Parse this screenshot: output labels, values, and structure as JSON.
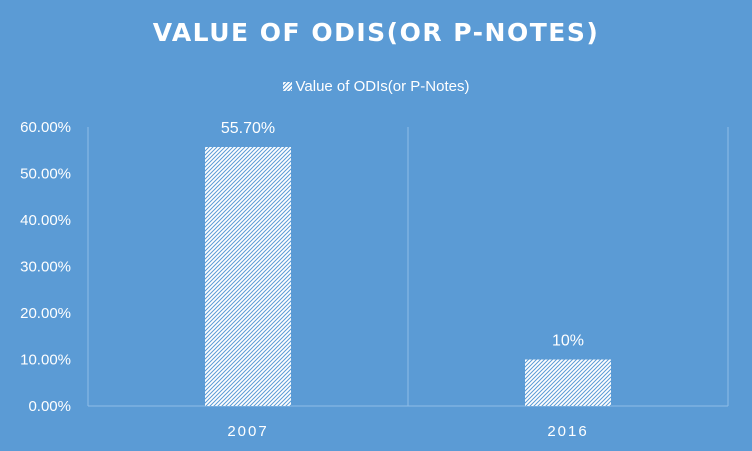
{
  "colors": {
    "background": "#5b9bd5",
    "text": "#ffffff",
    "gridline": "#8fbce6",
    "bar_pattern": "hatched-white"
  },
  "chart_data": {
    "type": "bar",
    "title": "VALUE OF ODIS(OR P-NOTES)",
    "legend_position": "top",
    "categories": [
      "2007",
      "2016"
    ],
    "series": [
      {
        "name": "Value of ODIs(or P-Notes)",
        "values": [
          55.7,
          10
        ],
        "data_labels": [
          "55.70%",
          "10%"
        ]
      }
    ],
    "ylim": [
      0,
      60
    ],
    "yticks": [
      "0.00%",
      "10.00%",
      "20.00%",
      "30.00%",
      "40.00%",
      "50.00%",
      "60.00%"
    ],
    "grid": false
  }
}
